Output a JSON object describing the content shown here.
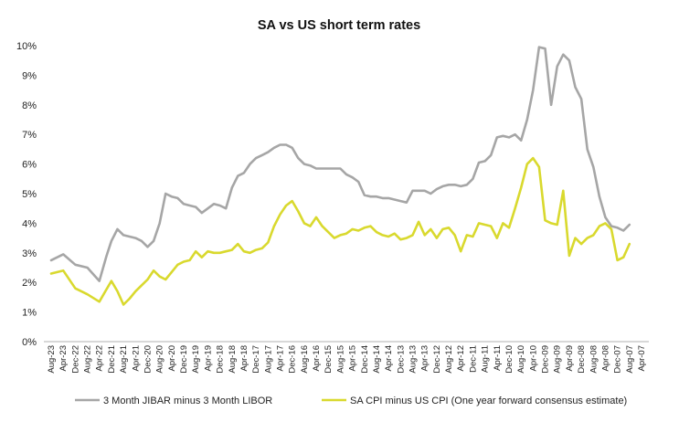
{
  "chart_data": {
    "type": "line",
    "title": "SA vs US short term rates",
    "xlabel": "",
    "ylabel": "",
    "ylim": [
      0,
      10
    ],
    "y_ticks": [
      0,
      1,
      2,
      3,
      4,
      5,
      6,
      7,
      8,
      9,
      10
    ],
    "y_tick_labels": [
      "0%",
      "1%",
      "2%",
      "3%",
      "4%",
      "5%",
      "6%",
      "7%",
      "8%",
      "9%",
      "10%"
    ],
    "x_axis_direction": "reversed (most recent on left)",
    "x_tick_labels": [
      "Aug-23",
      "Apr-23",
      "Dec-22",
      "Aug-22",
      "Apr-22",
      "Dec-21",
      "Aug-21",
      "Apr-21",
      "Dec-20",
      "Aug-20",
      "Apr-20",
      "Dec-19",
      "Aug-19",
      "Apr-19",
      "Dec-18",
      "Aug-18",
      "Apr-18",
      "Dec-17",
      "Aug-17",
      "Apr-17",
      "Dec-16",
      "Aug-16",
      "Apr-16",
      "Dec-15",
      "Aug-15",
      "Apr-15",
      "Dec-14",
      "Aug-14",
      "Apr-14",
      "Dec-13",
      "Aug-13",
      "Apr-13",
      "Dec-12",
      "Aug-12",
      "Apr-12",
      "Dec-11",
      "Aug-11",
      "Apr-11",
      "Dec-10",
      "Aug-10",
      "Apr-10",
      "Dec-09",
      "Aug-09",
      "Apr-09",
      "Dec-08",
      "Aug-08",
      "Apr-08",
      "Dec-07",
      "Aug-07",
      "Apr-07"
    ],
    "legend_position": "bottom",
    "series": [
      {
        "name": "3 Month JIBAR minus 3 Month LIBOR",
        "color": "#a6a6a6",
        "points": [
          [
            0,
            2.75
          ],
          [
            1,
            2.95
          ],
          [
            2,
            2.6
          ],
          [
            3,
            2.5
          ],
          [
            4,
            2.05
          ],
          [
            4.6,
            2.9
          ],
          [
            5,
            3.4
          ],
          [
            5.5,
            3.8
          ],
          [
            6,
            3.6
          ],
          [
            6.5,
            3.55
          ],
          [
            7,
            3.5
          ],
          [
            7.5,
            3.4
          ],
          [
            8,
            3.2
          ],
          [
            8.5,
            3.4
          ],
          [
            9,
            4.0
          ],
          [
            9.5,
            5.0
          ],
          [
            10,
            4.9
          ],
          [
            10.5,
            4.85
          ],
          [
            11,
            4.65
          ],
          [
            11.5,
            4.6
          ],
          [
            12,
            4.55
          ],
          [
            12.5,
            4.35
          ],
          [
            13,
            4.5
          ],
          [
            13.5,
            4.65
          ],
          [
            14,
            4.6
          ],
          [
            14.5,
            4.5
          ],
          [
            15,
            5.2
          ],
          [
            15.5,
            5.6
          ],
          [
            16,
            5.7
          ],
          [
            16.5,
            6.0
          ],
          [
            17,
            6.2
          ],
          [
            17.5,
            6.3
          ],
          [
            18,
            6.4
          ],
          [
            18.5,
            6.55
          ],
          [
            19,
            6.65
          ],
          [
            19.5,
            6.65
          ],
          [
            20,
            6.55
          ],
          [
            20.5,
            6.2
          ],
          [
            21,
            6.0
          ],
          [
            21.5,
            5.95
          ],
          [
            22,
            5.85
          ],
          [
            22.5,
            5.85
          ],
          [
            23,
            5.85
          ],
          [
            23.5,
            5.85
          ],
          [
            24,
            5.85
          ],
          [
            24.5,
            5.65
          ],
          [
            25,
            5.55
          ],
          [
            25.5,
            5.4
          ],
          [
            26,
            4.95
          ],
          [
            26.5,
            4.9
          ],
          [
            27,
            4.9
          ],
          [
            27.5,
            4.85
          ],
          [
            28,
            4.85
          ],
          [
            28.5,
            4.8
          ],
          [
            29,
            4.75
          ],
          [
            29.5,
            4.7
          ],
          [
            30,
            5.1
          ],
          [
            30.5,
            5.1
          ],
          [
            31,
            5.1
          ],
          [
            31.5,
            5.0
          ],
          [
            32,
            5.15
          ],
          [
            32.5,
            5.25
          ],
          [
            33,
            5.3
          ],
          [
            33.5,
            5.3
          ],
          [
            34,
            5.25
          ],
          [
            34.5,
            5.3
          ],
          [
            35,
            5.5
          ],
          [
            35.5,
            6.05
          ],
          [
            36,
            6.1
          ],
          [
            36.5,
            6.3
          ],
          [
            37,
            6.9
          ],
          [
            37.5,
            6.95
          ],
          [
            38,
            6.9
          ],
          [
            38.5,
            7.0
          ],
          [
            39,
            6.8
          ],
          [
            39.5,
            7.5
          ],
          [
            40,
            8.5
          ],
          [
            40.5,
            9.95
          ],
          [
            41,
            9.9
          ],
          [
            41.5,
            8.0
          ],
          [
            42,
            9.3
          ],
          [
            42.5,
            9.7
          ],
          [
            43,
            9.5
          ],
          [
            43.5,
            8.6
          ],
          [
            44,
            8.2
          ],
          [
            44.5,
            6.5
          ],
          [
            45,
            5.9
          ],
          [
            45.5,
            4.9
          ],
          [
            46,
            4.2
          ],
          [
            46.5,
            3.9
          ],
          [
            47,
            3.85
          ],
          [
            47.5,
            3.75
          ],
          [
            48,
            3.95
          ]
        ]
      },
      {
        "name": "SA CPI minus US CPI (One year forward consensus estimate)",
        "color": "#d9d92e",
        "points": [
          [
            0,
            2.3
          ],
          [
            1,
            2.4
          ],
          [
            2,
            1.8
          ],
          [
            3,
            1.6
          ],
          [
            4,
            1.35
          ],
          [
            4.5,
            1.7
          ],
          [
            5,
            2.05
          ],
          [
            5.5,
            1.7
          ],
          [
            6,
            1.25
          ],
          [
            6.5,
            1.45
          ],
          [
            7,
            1.7
          ],
          [
            7.5,
            1.9
          ],
          [
            8,
            2.1
          ],
          [
            8.5,
            2.4
          ],
          [
            9,
            2.2
          ],
          [
            9.5,
            2.1
          ],
          [
            10,
            2.35
          ],
          [
            10.5,
            2.6
          ],
          [
            11,
            2.7
          ],
          [
            11.5,
            2.75
          ],
          [
            12,
            3.05
          ],
          [
            12.5,
            2.85
          ],
          [
            13,
            3.05
          ],
          [
            13.5,
            3.0
          ],
          [
            14,
            3.0
          ],
          [
            14.5,
            3.05
          ],
          [
            15,
            3.1
          ],
          [
            15.5,
            3.3
          ],
          [
            16,
            3.05
          ],
          [
            16.5,
            3.0
          ],
          [
            17,
            3.1
          ],
          [
            17.5,
            3.15
          ],
          [
            18,
            3.35
          ],
          [
            18.5,
            3.9
          ],
          [
            19,
            4.3
          ],
          [
            19.5,
            4.6
          ],
          [
            20,
            4.75
          ],
          [
            20.5,
            4.4
          ],
          [
            21,
            4.0
          ],
          [
            21.5,
            3.9
          ],
          [
            22,
            4.2
          ],
          [
            22.5,
            3.9
          ],
          [
            23,
            3.7
          ],
          [
            23.5,
            3.5
          ],
          [
            24,
            3.6
          ],
          [
            24.5,
            3.65
          ],
          [
            25,
            3.8
          ],
          [
            25.5,
            3.75
          ],
          [
            26,
            3.85
          ],
          [
            26.5,
            3.9
          ],
          [
            27,
            3.7
          ],
          [
            27.5,
            3.6
          ],
          [
            28,
            3.55
          ],
          [
            28.5,
            3.65
          ],
          [
            29,
            3.45
          ],
          [
            29.5,
            3.5
          ],
          [
            30,
            3.6
          ],
          [
            30.5,
            4.05
          ],
          [
            31,
            3.6
          ],
          [
            31.5,
            3.8
          ],
          [
            32,
            3.5
          ],
          [
            32.5,
            3.8
          ],
          [
            33,
            3.85
          ],
          [
            33.5,
            3.6
          ],
          [
            34,
            3.05
          ],
          [
            34.5,
            3.6
          ],
          [
            35,
            3.55
          ],
          [
            35.5,
            4.0
          ],
          [
            36,
            3.95
          ],
          [
            36.5,
            3.9
          ],
          [
            37,
            3.5
          ],
          [
            37.5,
            4.0
          ],
          [
            38,
            3.85
          ],
          [
            38.5,
            4.5
          ],
          [
            39,
            5.2
          ],
          [
            39.5,
            6.0
          ],
          [
            40,
            6.2
          ],
          [
            40.5,
            5.9
          ],
          [
            41,
            4.1
          ],
          [
            41.5,
            4.0
          ],
          [
            42,
            3.95
          ],
          [
            42.5,
            5.1
          ],
          [
            43,
            2.9
          ],
          [
            43.5,
            3.5
          ],
          [
            44,
            3.3
          ],
          [
            44.5,
            3.5
          ],
          [
            45,
            3.6
          ],
          [
            45.5,
            3.9
          ],
          [
            46,
            4.0
          ],
          [
            46.5,
            3.8
          ],
          [
            47,
            2.75
          ],
          [
            47.5,
            2.85
          ],
          [
            48,
            3.3
          ]
        ]
      }
    ]
  }
}
